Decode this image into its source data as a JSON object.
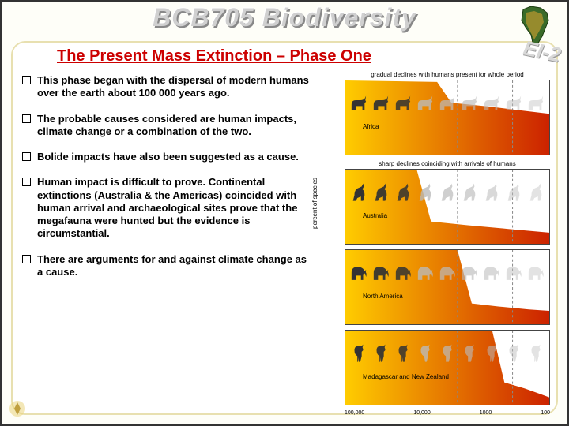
{
  "header": {
    "course_title": "BCB705 Biodiversity",
    "sidebar_code": "EI-2"
  },
  "section_title": "The Present Mass Extinction – Phase One",
  "bullets": [
    "This phase began with the dispersal of modern humans over the earth about 100 000 years ago.",
    "The probable causes considered are human impacts, climate change or a combination of the two.",
    "Bolide impacts have also been suggested as a cause.",
    "Human impact is difficult to prove. Continental extinctions (Australia & the Americas) coincided with human arrival and archaeological sites prove that the megafauna were hunted but the evidence is circumstantial.",
    "There are arguments for and against climate change as a cause."
  ],
  "charts": {
    "yaxis_title": "percent of species",
    "x_labels": [
      "100,000",
      "10,000",
      "1000",
      "100"
    ],
    "y_ticks": [
      0,
      50,
      100
    ],
    "panel_captions": [
      "gradual declines with humans present for whole period",
      "sharp declines coinciding with arrivals of humans"
    ],
    "panels": [
      {
        "region": "Africa",
        "fill_start": "#ffcc00",
        "fill_end": "#cc2200",
        "curve": [
          [
            0,
            100
          ],
          [
            0.45,
            98
          ],
          [
            0.52,
            70
          ],
          [
            0.7,
            65
          ],
          [
            0.85,
            60
          ],
          [
            1,
            55
          ]
        ],
        "silhouette_color": "#333333",
        "silhouette_fade": "#bbbbbb"
      },
      {
        "region": "Australia",
        "fill_start": "#ffcc00",
        "fill_end": "#cc2200",
        "curve": [
          [
            0,
            100
          ],
          [
            0.35,
            100
          ],
          [
            0.42,
            30
          ],
          [
            0.6,
            25
          ],
          [
            0.8,
            20
          ],
          [
            1,
            15
          ]
        ],
        "silhouette_color": "#333333",
        "silhouette_fade": "#bbbbbb"
      },
      {
        "region": "North America",
        "fill_start": "#ffcc00",
        "fill_end": "#cc2200",
        "curve": [
          [
            0,
            100
          ],
          [
            0.55,
            100
          ],
          [
            0.62,
            28
          ],
          [
            0.75,
            24
          ],
          [
            0.9,
            20
          ],
          [
            1,
            18
          ]
        ],
        "silhouette_color": "#333333",
        "silhouette_fade": "#bbbbbb"
      },
      {
        "region": "Madagascar and New Zealand",
        "fill_start": "#ffcc00",
        "fill_end": "#cc2200",
        "curve": [
          [
            0,
            100
          ],
          [
            0.72,
            100
          ],
          [
            0.78,
            30
          ],
          [
            0.88,
            22
          ],
          [
            0.95,
            15
          ],
          [
            1,
            10
          ]
        ],
        "silhouette_color": "#333333",
        "silhouette_fade": "#bbbbbb"
      }
    ]
  },
  "colors": {
    "title_red": "#cc0000",
    "frame_tan": "#e8e0b0",
    "background": "#fefef8"
  }
}
